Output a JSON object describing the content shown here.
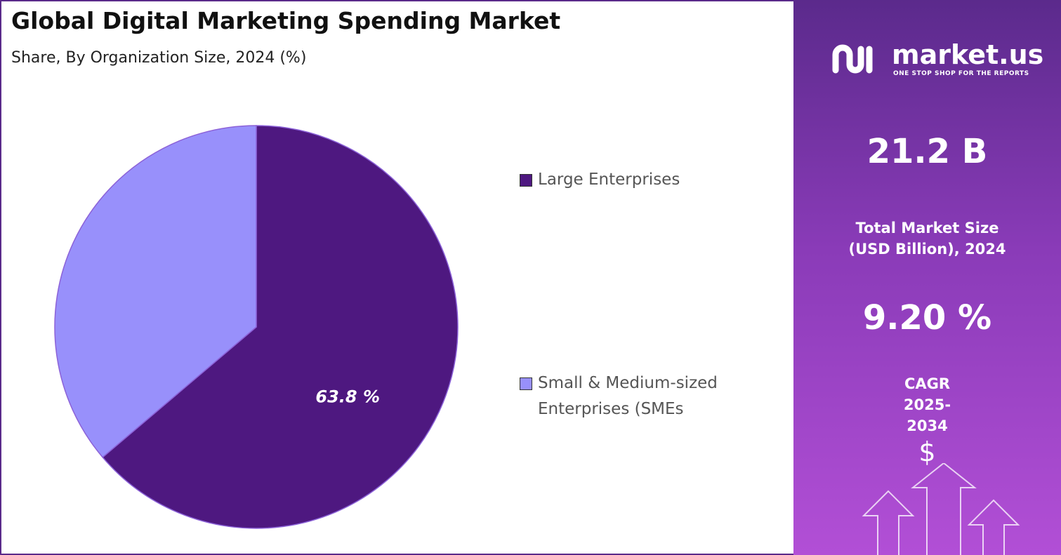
{
  "chart_data": {
    "type": "pie",
    "title": "Global Digital Marketing Spending Market",
    "subtitle": "Share, By Organization Size, 2024 (%)",
    "categories": [
      "Large Enterprises",
      "Small & Medium-sized Enterprises (SMEs"
    ],
    "values": [
      63.8,
      36.2
    ],
    "value_labels": [
      "63.8 %",
      null
    ],
    "colors": [
      "#4e1880",
      "#9890fb"
    ]
  },
  "panel": {
    "brand": "market.us",
    "tagline": "ONE STOP SHOP FOR THE REPORTS",
    "market_size": "21.2 B",
    "market_size_label": "Total Market Size (USD Billion), 2024",
    "cagr": "9.20 %",
    "cagr_label": "CAGR 2025-2034",
    "icon_symbol": "$"
  }
}
